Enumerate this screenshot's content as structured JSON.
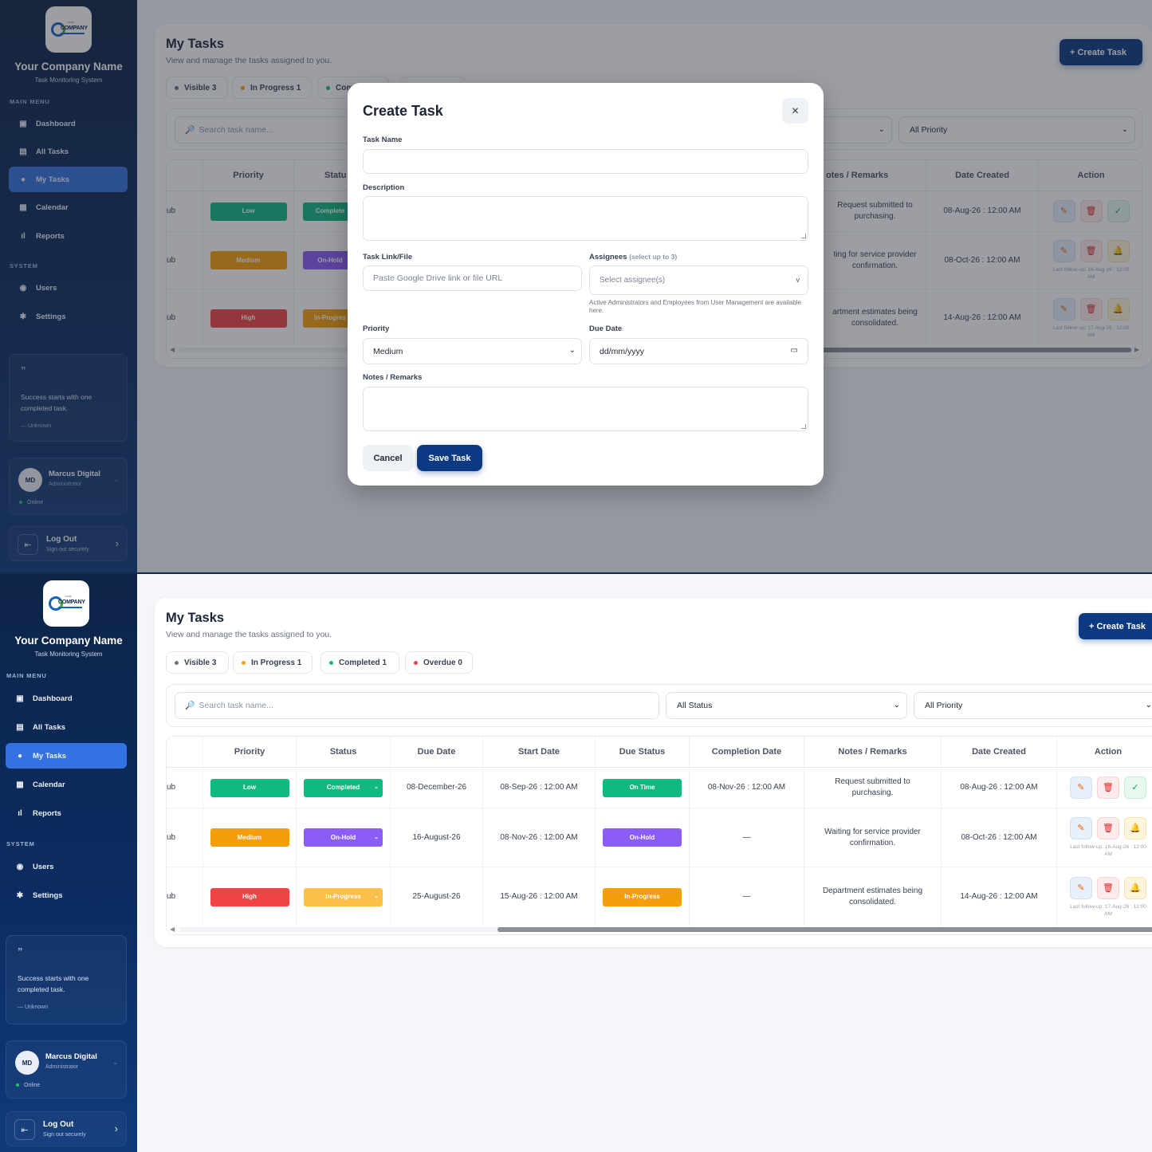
{
  "brand": {
    "name": "Your Company Name",
    "subtitle": "Task Monitoring System",
    "logo_text": "COMPANY",
    "logo_small": "YOUR"
  },
  "sidebar": {
    "main_label": "MAIN MENU",
    "system_label": "SYSTEM",
    "items": [
      {
        "label": "Dashboard",
        "icon": "dashboard-icon"
      },
      {
        "label": "All Tasks",
        "icon": "clipboard-icon"
      },
      {
        "label": "My Tasks",
        "icon": "user-icon",
        "active": true
      },
      {
        "label": "Calendar",
        "icon": "calendar-icon"
      },
      {
        "label": "Reports",
        "icon": "bar-chart-icon"
      }
    ],
    "system_items": [
      {
        "label": "Users",
        "icon": "users-icon"
      },
      {
        "label": "Settings",
        "icon": "gear-icon"
      }
    ],
    "quote": {
      "mark": "”",
      "text": "Success starts with one completed task.",
      "author": "— Unknown"
    },
    "user": {
      "initials": "MD",
      "name": "Marcus Digital",
      "role": "Administrator",
      "status": "Online"
    },
    "logout": {
      "title": "Log Out",
      "subtitle": "Sign out securely"
    }
  },
  "page": {
    "title": "My Tasks",
    "subtitle": "View and manage the tasks assigned to you.",
    "create_label": "+ Create Task",
    "stats": [
      {
        "label": "Visible 3",
        "color": "#6b7280"
      },
      {
        "label": "In Progress 1",
        "color": "#f59e0b"
      },
      {
        "label": "Completed 1",
        "color": "#10b981"
      },
      {
        "label": "Overdue 0",
        "color": "#ef4444"
      }
    ],
    "stats_truncated": "Com",
    "search_placeholder": "Search task name...",
    "status_filter": "All Status",
    "priority_filter": "All Priority"
  },
  "table": {
    "columns": [
      "",
      "Priority",
      "Status",
      "Due Date",
      "Start Date",
      "Due Status",
      "Completion Date",
      "Notes / Remarks",
      "Date Created",
      "Action"
    ],
    "columns_truncated": {
      "status": "Statu",
      "notes": "otes / Remarks"
    },
    "rows": [
      {
        "task": "ub",
        "priority": "Low",
        "priority_color": "#10b981",
        "status": "Completed",
        "status_color": "#10b981",
        "due_date": "08-December-26",
        "start_date": "08-Sep-26 : 12:00 AM",
        "due_status": "On Time",
        "due_status_color": "#10b981",
        "completion": "08-Nov-26 : 12:00 AM",
        "notes": "Request submitted to purchasing.",
        "created": "08-Aug-26 : 12:00 AM",
        "third_action": "check",
        "followup": "",
        "status_trunc": "Complete",
        "notes_trunc": "Request submitted to purchasing."
      },
      {
        "task": "ub",
        "priority": "Medium",
        "priority_color": "#f59e0b",
        "status": "On-Hold",
        "status_color": "#8b5cf6",
        "due_date": "16-August-26",
        "start_date": "08-Nov-26 : 12:00 AM",
        "due_status": "On-Hold",
        "due_status_color": "#8b5cf6",
        "completion": "—",
        "notes": "Waiting for service provider confirmation.",
        "created": "08-Oct-26 : 12:00 AM",
        "third_action": "bell",
        "followup": "Last follow-up: 16-Aug-26 : 12:00 AM",
        "status_trunc": "On-Hold",
        "notes_trunc": "ting for service provider confirmation."
      },
      {
        "task": "ub",
        "priority": "High",
        "priority_color": "#ef4444",
        "status": "In-Progress",
        "status_color": "#f59e0b",
        "due_date": "25-August-26",
        "start_date": "15-Aug-26 : 12:00 AM",
        "due_status": "In-Progress",
        "due_status_color": "#f59e0b",
        "completion": "—",
        "notes": "Department estimates being consolidated.",
        "created": "14-Aug-26 : 12:00 AM",
        "third_action": "bell",
        "followup": "Last follow-up: 17-Aug-26 : 12:00 AM",
        "status_trunc": "In-Progres",
        "notes_trunc": "artment estimates being consolidated."
      }
    ]
  },
  "modal": {
    "title": "Create Task",
    "close": "✕",
    "task_name_label": "Task Name",
    "description_label": "Description",
    "link_label": "Task Link/File",
    "link_placeholder": "Paste Google Drive link or file URL",
    "assignees_label": "Assignees",
    "assignees_hint": "(select up to 3)",
    "assignees_placeholder": "Select assignee(s)",
    "assignees_note": "Active Administrators and Employees from User Management are available here.",
    "priority_label": "Priority",
    "priority_value": "Medium",
    "due_label": "Due Date",
    "due_placeholder": "dd/mm/yyyy",
    "notes_label": "Notes / Remarks",
    "cancel_label": "Cancel",
    "save_label": "Save Task"
  }
}
